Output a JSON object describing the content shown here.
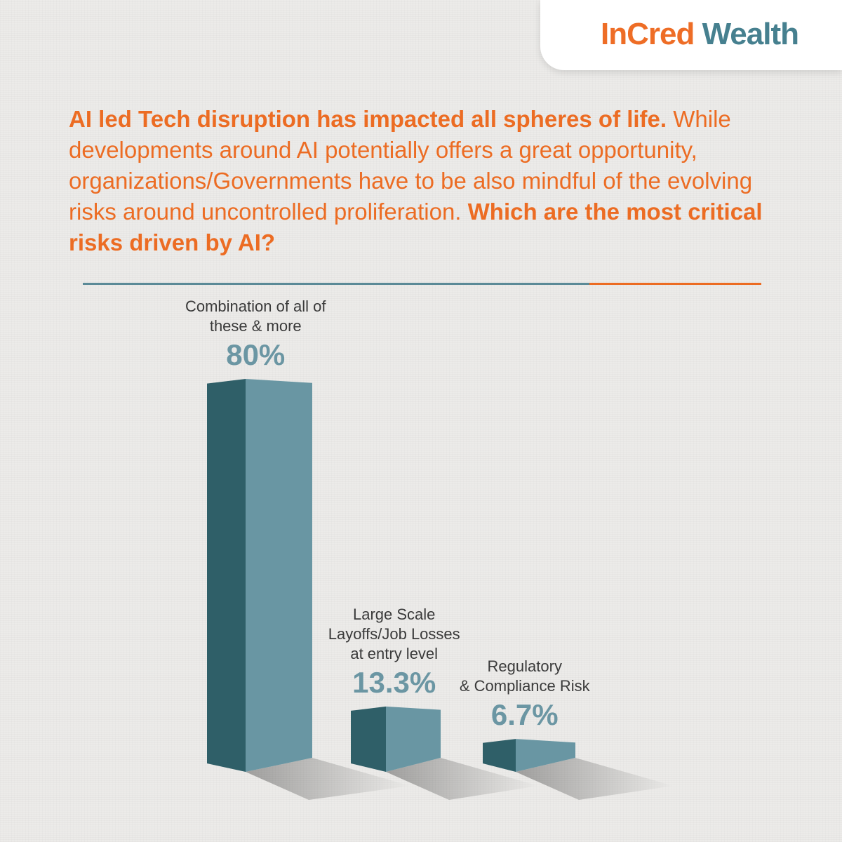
{
  "brand": {
    "logo_part1": "InCred",
    "logo_part2": "Wealth",
    "accent": "#ec6c23",
    "secondary": "#46808f"
  },
  "headline": {
    "bold_intro": "AI led Tech disruption has impacted all spheres of life.",
    "body": "While developments around AI potentially offers a great opportunity, organizations/Governments have to be also mindful of the evolving risks around uncontrolled proliferation.",
    "bold_question": "Which are the most critical risks driven by AI?"
  },
  "chart_data": {
    "type": "bar",
    "categories": [
      [
        "Combination of all of",
        "these & more"
      ],
      [
        "Large Scale",
        "Layoffs/Job Losses",
        "at entry level"
      ],
      [
        "Regulatory",
        "& Compliance Risk"
      ]
    ],
    "values": [
      80,
      13.3,
      6.7
    ],
    "value_labels": [
      "80%",
      "13.3%",
      "6.7%"
    ],
    "unit": "%",
    "colors": {
      "bar_front": "#6996a3",
      "bar_side": "#2f5f68",
      "label": "#6b96a3",
      "category_text": "#3a3a3a"
    },
    "grid": false,
    "legend": "none"
  }
}
